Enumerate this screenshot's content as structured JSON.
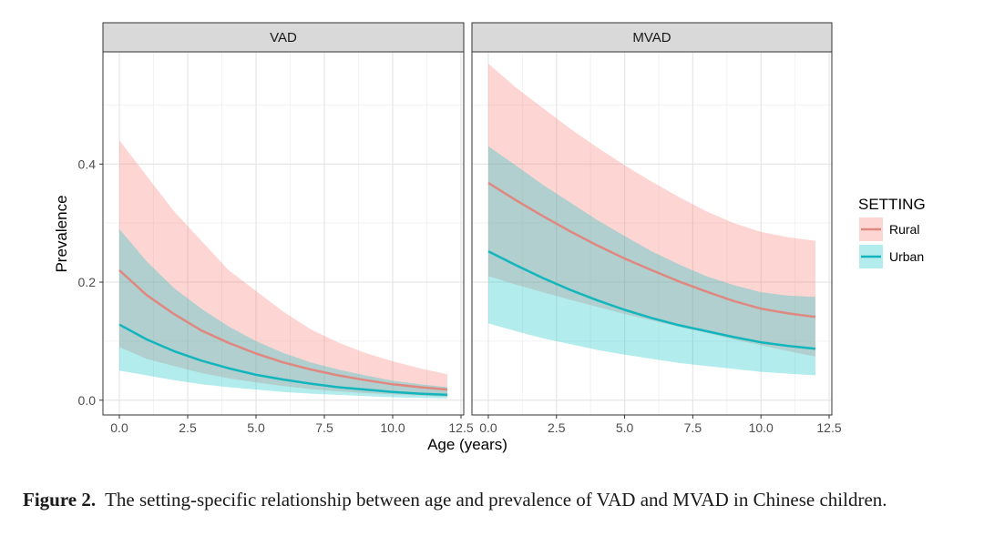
{
  "chart_data": {
    "type": "line",
    "title": "",
    "xlabel": "Age (years)",
    "ylabel": "Prevalence",
    "xlim": [
      -0.6,
      12.6
    ],
    "ylim": [
      -0.025,
      0.59
    ],
    "x_ticks": [
      0.0,
      2.5,
      5.0,
      7.5,
      10.0,
      12.5
    ],
    "x_tick_labels": [
      "0.0",
      "2.5",
      "5.0",
      "7.5",
      "10.0",
      "12.5"
    ],
    "y_ticks": [
      0.0,
      0.2,
      0.4
    ],
    "y_tick_labels": [
      "0.0",
      "0.2",
      "0.4"
    ],
    "grid": true,
    "legend": {
      "title": "SETTING",
      "position": "right",
      "entries": [
        {
          "label": "Rural",
          "line_color": "#e0877f",
          "fill_color": "#f8766d"
        },
        {
          "label": "Urban",
          "line_color": "#12b5bc",
          "fill_color": "#00bfc4"
        }
      ]
    },
    "panels": [
      {
        "strip": "VAD",
        "series": [
          {
            "name": "Rural",
            "x": [
              0,
              1,
              2,
              3,
              4,
              5,
              6,
              7,
              8,
              9,
              10,
              11,
              12
            ],
            "y": [
              0.22,
              0.178,
              0.146,
              0.118,
              0.097,
              0.079,
              0.064,
              0.052,
              0.042,
              0.034,
              0.027,
              0.022,
              0.018
            ],
            "lower": [
              0.09,
              0.07,
              0.058,
              0.046,
              0.037,
              0.03,
              0.024,
              0.019,
              0.015,
              0.012,
              0.01,
              0.008,
              0.006
            ],
            "upper": [
              0.44,
              0.38,
              0.32,
              0.27,
              0.22,
              0.185,
              0.15,
              0.12,
              0.098,
              0.08,
              0.066,
              0.054,
              0.044
            ]
          },
          {
            "name": "Urban",
            "x": [
              0,
              1,
              2,
              3,
              4,
              5,
              6,
              7,
              8,
              9,
              10,
              11,
              12
            ],
            "y": [
              0.128,
              0.103,
              0.083,
              0.067,
              0.054,
              0.043,
              0.035,
              0.028,
              0.022,
              0.018,
              0.014,
              0.011,
              0.009
            ],
            "lower": [
              0.05,
              0.042,
              0.034,
              0.027,
              0.022,
              0.018,
              0.014,
              0.011,
              0.009,
              0.007,
              0.005,
              0.004,
              0.003
            ],
            "upper": [
              0.29,
              0.235,
              0.19,
              0.155,
              0.125,
              0.1,
              0.08,
              0.064,
              0.052,
              0.042,
              0.033,
              0.027,
              0.022
            ]
          }
        ]
      },
      {
        "strip": "MVAD",
        "series": [
          {
            "name": "Rural",
            "x": [
              0,
              1,
              2,
              3,
              4,
              5,
              6,
              7,
              8,
              9,
              10,
              11,
              12
            ],
            "y": [
              0.368,
              0.339,
              0.312,
              0.286,
              0.262,
              0.24,
              0.22,
              0.201,
              0.184,
              0.168,
              0.155,
              0.147,
              0.141
            ],
            "lower": [
              0.21,
              0.196,
              0.183,
              0.17,
              0.158,
              0.146,
              0.135,
              0.124,
              0.114,
              0.103,
              0.093,
              0.083,
              0.074
            ],
            "upper": [
              0.57,
              0.53,
              0.495,
              0.46,
              0.428,
              0.398,
              0.37,
              0.344,
              0.32,
              0.3,
              0.285,
              0.276,
              0.27
            ]
          },
          {
            "name": "Urban",
            "x": [
              0,
              1,
              2,
              3,
              4,
              5,
              6,
              7,
              8,
              9,
              10,
              11,
              12
            ],
            "y": [
              0.252,
              0.229,
              0.207,
              0.187,
              0.169,
              0.153,
              0.139,
              0.127,
              0.117,
              0.107,
              0.098,
              0.092,
              0.087
            ],
            "lower": [
              0.13,
              0.117,
              0.105,
              0.095,
              0.085,
              0.077,
              0.07,
              0.063,
              0.058,
              0.053,
              0.048,
              0.045,
              0.042
            ],
            "upper": [
              0.43,
              0.398,
              0.365,
              0.335,
              0.305,
              0.278,
              0.252,
              0.23,
              0.21,
              0.195,
              0.183,
              0.177,
              0.175
            ]
          }
        ]
      }
    ]
  },
  "caption": {
    "label": "Figure 2.",
    "text": "The setting-specific relationship between age and prevalence of VAD and MVAD in Chinese children."
  }
}
